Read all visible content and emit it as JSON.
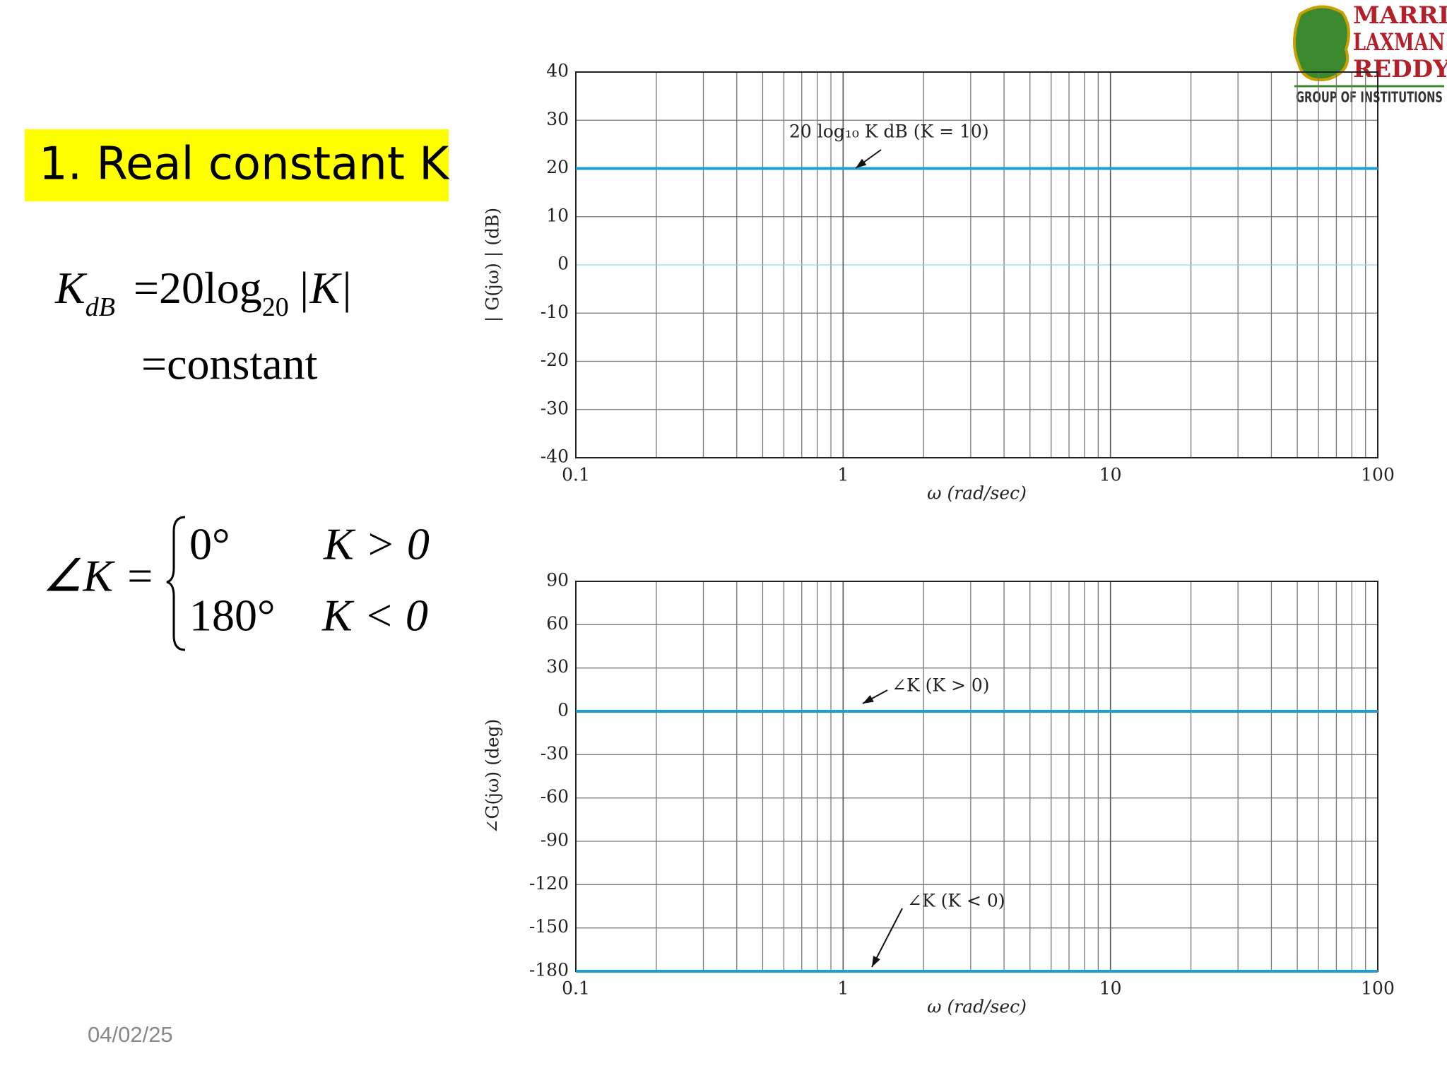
{
  "slide": {
    "title": "1. Real constant K",
    "eq_magnitude": {
      "lhs": "K",
      "lhs_sub": "dB",
      "rhs": "=20log",
      "rhs_sub": "20",
      "rhs_arg": "|K|",
      "result": "=constant"
    },
    "eq_phase": {
      "lhs": "∠K =",
      "cases": [
        [
          "0°",
          "K > 0"
        ],
        [
          "180°",
          "K < 0"
        ]
      ]
    },
    "date": "04/02/25",
    "logo": {
      "lines": [
        "MARRI",
        "LAXMAN",
        "REDDY"
      ],
      "tagline": "GROUP OF INSTITUTIONS"
    }
  },
  "chart_data": [
    {
      "type": "line",
      "x_label": "ω (rad/sec)",
      "y_label": "| G(jω) | (dB)",
      "x_scale": "log",
      "x": [
        0.1,
        100
      ],
      "xlim": [
        0.1,
        100
      ],
      "xticks": [
        0.1,
        1,
        10,
        100
      ],
      "ylim": [
        -40,
        40
      ],
      "yticks": [
        -40,
        -30,
        -20,
        -10,
        0,
        10,
        20,
        30,
        40
      ],
      "grid": true,
      "minor_grid": true,
      "zero_line_color": "#8fd3ee",
      "series": [
        {
          "name": "20 log₁₀ K dB (K = 10)",
          "color": "#1a9fd6",
          "values": [
            20,
            20
          ]
        }
      ]
    },
    {
      "type": "line",
      "x_label": "ω (rad/sec)",
      "y_label": "∠G(jω) (deg)",
      "x_scale": "log",
      "x": [
        0.1,
        100
      ],
      "xlim": [
        0.1,
        100
      ],
      "xticks": [
        0.1,
        1,
        10,
        100
      ],
      "ylim": [
        -180,
        90
      ],
      "yticks": [
        -180,
        -150,
        -120,
        -90,
        -60,
        -30,
        0,
        30,
        60,
        90
      ],
      "grid": true,
      "minor_grid": true,
      "series": [
        {
          "name": "∠K (K > 0)",
          "color": "#1a9fd6",
          "values": [
            0,
            0
          ]
        },
        {
          "name": "∠K (K < 0)",
          "color": "#1a9fd6",
          "values": [
            -180,
            -180
          ]
        }
      ]
    }
  ]
}
